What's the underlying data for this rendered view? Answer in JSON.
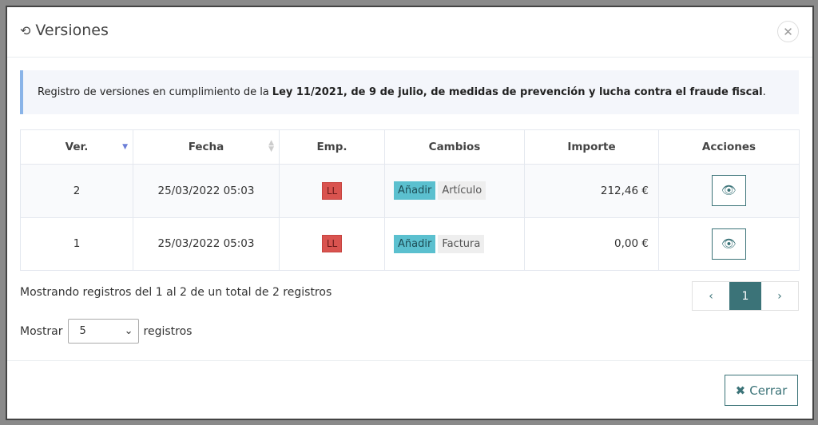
{
  "modal": {
    "title": "Versiones",
    "title_icon": "history-icon",
    "close_icon": "close-icon"
  },
  "alert": {
    "text": "Registro de versiones en cumplimiento de la",
    "bold": "Ley 11/2021, de 9 de julio, de medidas de prevención y lucha contra el fraude fiscal",
    "end": "."
  },
  "table": {
    "headers": [
      "Ver.",
      "Fecha",
      "Emp.",
      "Cambios",
      "Importe",
      "Acciones"
    ],
    "sort": {
      "column": "Ver.",
      "direction": "desc"
    },
    "rows": [
      {
        "ver": "2",
        "fecha": "25/03/2022 05:03",
        "emp": "LL",
        "accion": "Añadir",
        "objeto": "Artículo",
        "importe": "212,46 €"
      },
      {
        "ver": "1",
        "fecha": "25/03/2022 05:03",
        "emp": "LL",
        "accion": "Añadir",
        "objeto": "Factura",
        "importe": "0,00 €"
      }
    ]
  },
  "footer_info": "Mostrando registros del 1 al 2 de un total de 2 registros",
  "length": {
    "label_before": "Mostrar",
    "value": "5",
    "label_after": "registros"
  },
  "pagination": {
    "prev": "‹",
    "current": "1",
    "next": "›"
  },
  "close_button": {
    "label": "Cerrar"
  },
  "colors": {
    "primary": "#3b7378",
    "emp_badge": "#d9534f",
    "add_tag": "#5bc0cf",
    "alert_border": "#8ab4e8"
  }
}
